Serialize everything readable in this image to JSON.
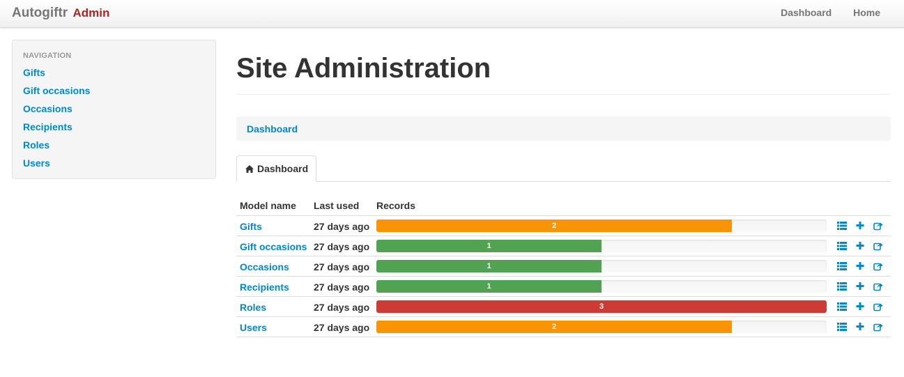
{
  "navbar": {
    "brand": "Autogiftr",
    "brand_suffix": "Admin",
    "links": [
      "Dashboard",
      "Home"
    ]
  },
  "sidebar": {
    "header": "NAVIGATION",
    "items": [
      "Gifts",
      "Gift occasions",
      "Occasions",
      "Recipients",
      "Roles",
      "Users"
    ]
  },
  "main": {
    "title": "Site Administration",
    "breadcrumb": "Dashboard",
    "tab_label": "Dashboard",
    "columns": [
      "Model name",
      "Last used",
      "Records"
    ],
    "rows": [
      {
        "name": "Gifts",
        "last_used": "27 days ago",
        "records": "2",
        "fill": 0.79,
        "color": "#f89406"
      },
      {
        "name": "Gift occasions",
        "last_used": "27 days ago",
        "records": "1",
        "fill": 0.5,
        "color": "#51a351"
      },
      {
        "name": "Occasions",
        "last_used": "27 days ago",
        "records": "1",
        "fill": 0.5,
        "color": "#51a351"
      },
      {
        "name": "Recipients",
        "last_used": "27 days ago",
        "records": "1",
        "fill": 0.5,
        "color": "#51a351"
      },
      {
        "name": "Roles",
        "last_used": "27 days ago",
        "records": "3",
        "fill": 1.0,
        "color": "#cd3b35"
      },
      {
        "name": "Users",
        "last_used": "27 days ago",
        "records": "2",
        "fill": 0.79,
        "color": "#f89406"
      }
    ],
    "row_actions": [
      "list-icon",
      "plus-icon",
      "export-icon"
    ]
  },
  "colors": {
    "link": "#0088cc",
    "brand_admin": "#b22222"
  }
}
